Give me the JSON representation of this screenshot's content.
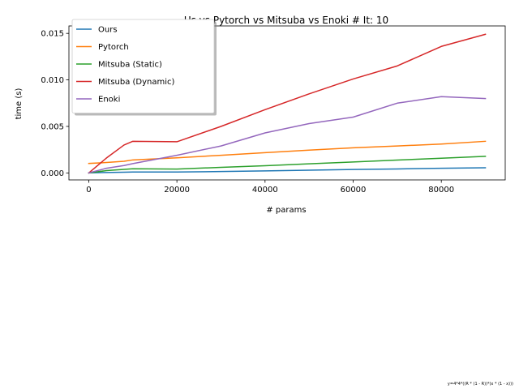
{
  "chart_data": {
    "type": "line",
    "title": "Us vs Pytorch vs Mitsuba vs Enoki # It: 10",
    "xlabel": "# params",
    "ylabel": "time (s)",
    "xlim": [
      -4500,
      94500
    ],
    "ylim": [
      -0.00075,
      0.0158
    ],
    "xticks": [
      0,
      20000,
      40000,
      60000,
      80000
    ],
    "xtick_labels": [
      "0",
      "20000",
      "40000",
      "60000",
      "80000"
    ],
    "yticks": [
      0.0,
      0.005,
      0.01,
      0.015
    ],
    "ytick_labels": [
      "0.000",
      "0.005",
      "0.010",
      "0.015"
    ],
    "grid": false,
    "legend_position": "upper-left",
    "footnote": "y=4*4*((R * (1 - R))*(x * (1 - x)))",
    "series": [
      {
        "name": "Ours",
        "color": "#1f77b4",
        "x": [
          0,
          4000,
          8000,
          10000,
          20000,
          30000,
          40000,
          50000,
          60000,
          70000,
          80000,
          90000
        ],
        "y": [
          0.0,
          5e-05,
          8e-05,
          0.0001,
          0.0001,
          0.00015,
          0.00022,
          0.0003,
          0.00037,
          0.00043,
          0.0005,
          0.00056
        ]
      },
      {
        "name": "Pytorch",
        "color": "#ff7f0e",
        "x": [
          0,
          4000,
          8000,
          10000,
          20000,
          30000,
          40000,
          50000,
          60000,
          70000,
          80000,
          90000
        ],
        "y": [
          0.00102,
          0.00112,
          0.00125,
          0.0014,
          0.00162,
          0.0019,
          0.00218,
          0.00245,
          0.0027,
          0.0029,
          0.0031,
          0.0034
        ]
      },
      {
        "name": "Mitsuba (Static)",
        "color": "#2ca02c",
        "x": [
          0,
          4000,
          8000,
          10000,
          20000,
          30000,
          40000,
          50000,
          60000,
          70000,
          80000,
          90000
        ],
        "y": [
          0.0,
          0.00025,
          0.00038,
          0.00045,
          0.00042,
          0.0006,
          0.00078,
          0.00098,
          0.00118,
          0.00138,
          0.00158,
          0.00178
        ]
      },
      {
        "name": "Mitsuba (Dynamic)",
        "color": "#d62728",
        "x": [
          0,
          4000,
          8000,
          10000,
          20000,
          30000,
          40000,
          50000,
          60000,
          70000,
          80000,
          90000
        ],
        "y": [
          0.0,
          0.0016,
          0.003,
          0.0034,
          0.00335,
          0.005,
          0.0068,
          0.0085,
          0.0101,
          0.0115,
          0.0136,
          0.0149
        ]
      },
      {
        "name": "Enoki",
        "color": "#9467bd",
        "x": [
          0,
          4000,
          8000,
          10000,
          20000,
          30000,
          40000,
          50000,
          60000,
          70000,
          80000,
          90000
        ],
        "y": [
          0.0,
          0.0005,
          0.0008,
          0.001,
          0.0019,
          0.0029,
          0.0043,
          0.0053,
          0.006,
          0.0075,
          0.0082,
          0.008
        ]
      }
    ]
  }
}
